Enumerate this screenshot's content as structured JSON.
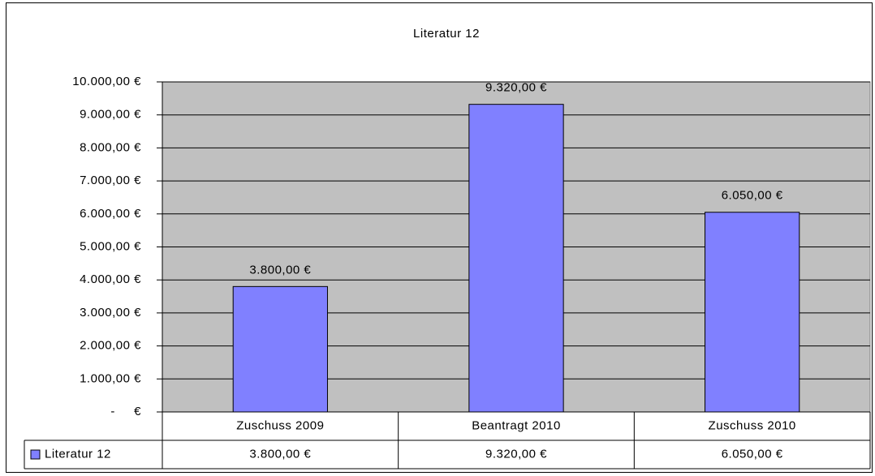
{
  "chart_data": {
    "type": "bar",
    "title": "Literatur 12",
    "categories": [
      "Zuschuss 2009",
      "Beantragt 2010",
      "Zuschuss 2010"
    ],
    "series": [
      {
        "name": "Literatur 12",
        "color": "#8080ff",
        "values": [
          3800,
          9320,
          6050
        ],
        "value_labels": [
          "3.800,00 €",
          "9.320,00 €",
          "6.050,00 €"
        ]
      }
    ],
    "ylim": [
      0,
      10000
    ],
    "yticks": [
      {
        "value": 0,
        "label": "-     €"
      },
      {
        "value": 1000,
        "label": "1.000,00 €"
      },
      {
        "value": 2000,
        "label": "2.000,00 €"
      },
      {
        "value": 3000,
        "label": "3.000,00 €"
      },
      {
        "value": 4000,
        "label": "4.000,00 €"
      },
      {
        "value": 5000,
        "label": "5.000,00 €"
      },
      {
        "value": 6000,
        "label": "6.000,00 €"
      },
      {
        "value": 7000,
        "label": "7.000,00 €"
      },
      {
        "value": 8000,
        "label": "8.000,00 €"
      },
      {
        "value": 9000,
        "label": "9.000,00 €"
      },
      {
        "value": 10000,
        "label": "10.000,00 €"
      }
    ],
    "grid": true,
    "plot_background": "#c0c0c0"
  }
}
